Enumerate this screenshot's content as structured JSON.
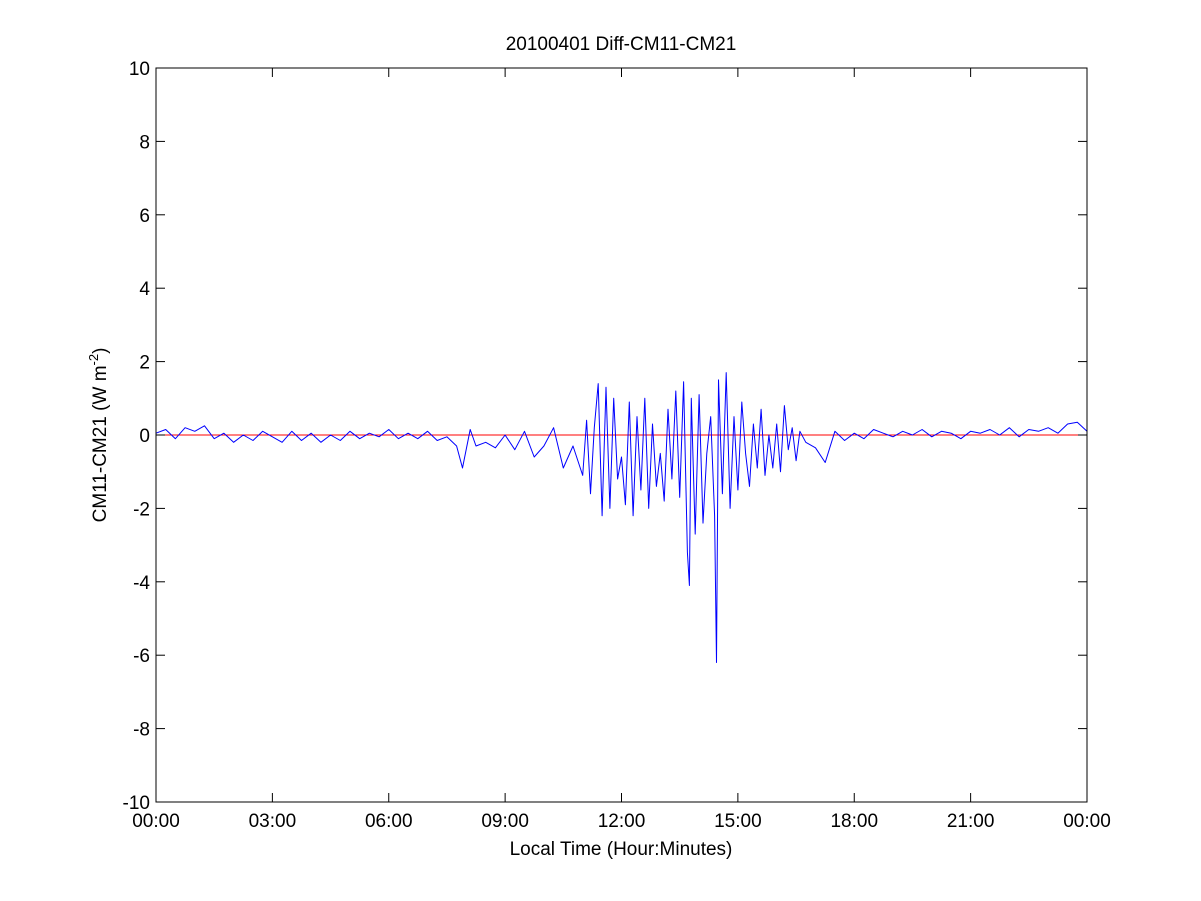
{
  "chart_data": {
    "type": "line",
    "title": "20100401 Diff-CM11-CM21",
    "xlabel": "Local Time (Hour:Minutes)",
    "ylabel": {
      "prefix": "CM11-CM21 (W m",
      "superscript": "-2",
      "suffix": ")"
    },
    "xlim": [
      0,
      24
    ],
    "ylim": [
      -10,
      10
    ],
    "x_unit": "hours (local time)",
    "x_ticks": [
      {
        "value": 0,
        "label": "00:00"
      },
      {
        "value": 3,
        "label": "03:00"
      },
      {
        "value": 6,
        "label": "06:00"
      },
      {
        "value": 9,
        "label": "09:00"
      },
      {
        "value": 12,
        "label": "12:00"
      },
      {
        "value": 15,
        "label": "15:00"
      },
      {
        "value": 18,
        "label": "18:00"
      },
      {
        "value": 21,
        "label": "21:00"
      },
      {
        "value": 24,
        "label": "00:00"
      }
    ],
    "y_ticks": [
      {
        "value": 10,
        "label": "10"
      },
      {
        "value": 8,
        "label": "8"
      },
      {
        "value": 6,
        "label": "6"
      },
      {
        "value": 4,
        "label": "4"
      },
      {
        "value": 2,
        "label": "2"
      },
      {
        "value": 0,
        "label": "0"
      },
      {
        "value": -2,
        "label": "-2"
      },
      {
        "value": -4,
        "label": "-4"
      },
      {
        "value": -6,
        "label": "-6"
      },
      {
        "value": -8,
        "label": "-8"
      },
      {
        "value": -10,
        "label": "-10"
      }
    ],
    "grid": false,
    "series": [
      {
        "color": "#0000ff",
        "x": [
          0,
          0.25,
          0.5,
          0.75,
          1.0,
          1.25,
          1.5,
          1.75,
          2.0,
          2.25,
          2.5,
          2.75,
          3.0,
          3.25,
          3.5,
          3.75,
          4.0,
          4.25,
          4.5,
          4.75,
          5.0,
          5.25,
          5.5,
          5.75,
          6.0,
          6.25,
          6.5,
          6.75,
          7.0,
          7.25,
          7.5,
          7.75,
          7.9,
          8.1,
          8.25,
          8.5,
          8.75,
          9.0,
          9.25,
          9.5,
          9.75,
          10.0,
          10.25,
          10.5,
          10.75,
          11.0,
          11.1,
          11.2,
          11.3,
          11.4,
          11.5,
          11.6,
          11.7,
          11.8,
          11.9,
          12.0,
          12.1,
          12.2,
          12.3,
          12.4,
          12.5,
          12.6,
          12.7,
          12.8,
          12.9,
          13.0,
          13.1,
          13.2,
          13.3,
          13.4,
          13.5,
          13.6,
          13.7,
          13.75,
          13.8,
          13.9,
          14.0,
          14.1,
          14.2,
          14.3,
          14.4,
          14.45,
          14.5,
          14.6,
          14.7,
          14.8,
          14.9,
          15.0,
          15.1,
          15.2,
          15.3,
          15.4,
          15.5,
          15.6,
          15.7,
          15.8,
          15.9,
          16.0,
          16.1,
          16.2,
          16.3,
          16.4,
          16.5,
          16.6,
          16.75,
          17.0,
          17.25,
          17.5,
          17.75,
          18.0,
          18.25,
          18.5,
          18.75,
          19.0,
          19.25,
          19.5,
          19.75,
          20.0,
          20.25,
          20.5,
          20.75,
          21.0,
          21.25,
          21.5,
          21.75,
          22.0,
          22.25,
          22.5,
          22.75,
          23.0,
          23.25,
          23.5,
          23.75,
          24.0
        ],
        "y": [
          0.05,
          0.15,
          -0.1,
          0.2,
          0.1,
          0.25,
          -0.1,
          0.05,
          -0.2,
          0.0,
          -0.15,
          0.1,
          -0.05,
          -0.2,
          0.1,
          -0.15,
          0.05,
          -0.2,
          0.0,
          -0.15,
          0.1,
          -0.1,
          0.05,
          -0.05,
          0.15,
          -0.1,
          0.05,
          -0.1,
          0.1,
          -0.15,
          -0.05,
          -0.3,
          -0.9,
          0.15,
          -0.3,
          -0.2,
          -0.35,
          0.0,
          -0.4,
          0.1,
          -0.6,
          -0.3,
          0.2,
          -0.9,
          -0.3,
          -1.1,
          0.4,
          -1.6,
          0.2,
          1.4,
          -2.2,
          1.3,
          -2.0,
          1.0,
          -1.2,
          -0.6,
          -1.9,
          0.9,
          -2.2,
          0.5,
          -1.5,
          1.0,
          -2.0,
          0.3,
          -1.4,
          -0.5,
          -1.8,
          0.7,
          -1.2,
          1.2,
          -1.7,
          1.45,
          -3.2,
          -4.1,
          1.0,
          -2.7,
          1.1,
          -2.4,
          -0.5,
          0.5,
          -2.2,
          -6.2,
          1.5,
          -1.6,
          1.7,
          -2.0,
          0.5,
          -1.5,
          0.9,
          -0.5,
          -1.4,
          0.3,
          -0.9,
          0.7,
          -1.1,
          0.0,
          -0.9,
          0.3,
          -1.0,
          0.8,
          -0.4,
          0.2,
          -0.7,
          0.1,
          -0.2,
          -0.35,
          -0.75,
          0.1,
          -0.15,
          0.05,
          -0.1,
          0.15,
          0.05,
          -0.05,
          0.1,
          0.0,
          0.15,
          -0.05,
          0.1,
          0.05,
          -0.1,
          0.1,
          0.05,
          0.15,
          0.0,
          0.2,
          -0.05,
          0.15,
          0.1,
          0.2,
          0.05,
          0.3,
          0.35,
          0.1
        ]
      },
      {
        "color": "#ff0000",
        "x": [
          0,
          24
        ],
        "y": [
          0,
          0
        ]
      }
    ]
  }
}
